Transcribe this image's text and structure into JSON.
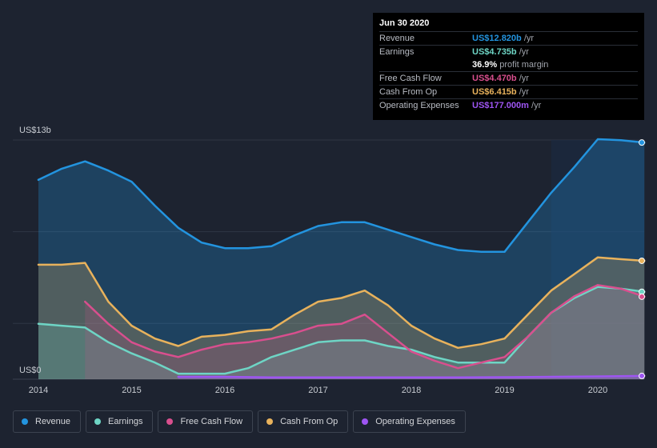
{
  "tooltip": {
    "date": "Jun 30 2020",
    "rows": [
      {
        "label": "Revenue",
        "value": "US$12.820b",
        "unit": "/yr",
        "color": "#2394df"
      },
      {
        "label": "Earnings",
        "value": "US$4.735b",
        "unit": "/yr",
        "color": "#6ed5c5"
      },
      {
        "label": "",
        "value": "36.9%",
        "unit": "profit margin",
        "color": "#ffffff"
      },
      {
        "label": "Free Cash Flow",
        "value": "US$4.470b",
        "unit": "/yr",
        "color": "#d94f8e"
      },
      {
        "label": "Cash From Op",
        "value": "US$6.415b",
        "unit": "/yr",
        "color": "#e8b25c"
      },
      {
        "label": "Operating Expenses",
        "value": "US$177.000m",
        "unit": "/yr",
        "color": "#9e55f2"
      }
    ]
  },
  "legend": [
    {
      "label": "Revenue",
      "color": "#2394df"
    },
    {
      "label": "Earnings",
      "color": "#6ed5c5"
    },
    {
      "label": "Free Cash Flow",
      "color": "#d94f8e"
    },
    {
      "label": "Cash From Op",
      "color": "#e8b25c"
    },
    {
      "label": "Operating Expenses",
      "color": "#9e55f2"
    }
  ],
  "chart_data": {
    "type": "area",
    "title": "",
    "y_unit_label_top": "US$13b",
    "y_unit_label_bottom": "US$0",
    "ylim": [
      0,
      13
    ],
    "xlim": [
      2014,
      2020.5
    ],
    "x_ticks": [
      "2014",
      "2015",
      "2016",
      "2017",
      "2018",
      "2019",
      "2020"
    ],
    "highlight_from": 2019.5,
    "series": [
      {
        "name": "Revenue",
        "color": "#2394df",
        "x": [
          2014.0,
          2014.25,
          2014.5,
          2014.75,
          2015.0,
          2015.25,
          2015.5,
          2015.75,
          2016.0,
          2016.25,
          2016.5,
          2016.75,
          2017.0,
          2017.25,
          2017.5,
          2017.75,
          2018.0,
          2018.25,
          2018.5,
          2018.75,
          2019.0,
          2019.25,
          2019.5,
          2019.75,
          2020.0,
          2020.25,
          2020.5
        ],
        "values": [
          10.8,
          11.4,
          11.8,
          11.3,
          10.7,
          9.4,
          8.2,
          7.4,
          7.1,
          7.1,
          7.2,
          7.8,
          8.3,
          8.5,
          8.5,
          8.1,
          7.7,
          7.3,
          7.0,
          6.9,
          6.9,
          8.5,
          10.1,
          11.5,
          13.0,
          12.95,
          12.82
        ]
      },
      {
        "name": "Cash From Op",
        "color": "#e8b25c",
        "x": [
          2014.0,
          2014.25,
          2014.5,
          2014.75,
          2015.0,
          2015.25,
          2015.5,
          2015.75,
          2016.0,
          2016.25,
          2016.5,
          2016.75,
          2017.0,
          2017.25,
          2017.5,
          2017.75,
          2018.0,
          2018.25,
          2018.5,
          2018.75,
          2019.0,
          2019.25,
          2019.5,
          2019.75,
          2020.0,
          2020.25,
          2020.5
        ],
        "values": [
          6.2,
          6.2,
          6.3,
          4.2,
          2.9,
          2.2,
          1.8,
          2.3,
          2.4,
          2.6,
          2.7,
          3.5,
          4.2,
          4.4,
          4.8,
          4.0,
          2.9,
          2.2,
          1.7,
          1.9,
          2.2,
          3.5,
          4.8,
          5.7,
          6.6,
          6.5,
          6.415
        ]
      },
      {
        "name": "Earnings",
        "color": "#6ed5c5",
        "x": [
          2014.0,
          2014.25,
          2014.5,
          2014.75,
          2015.0,
          2015.25,
          2015.5,
          2015.75,
          2016.0,
          2016.25,
          2016.5,
          2016.75,
          2017.0,
          2017.25,
          2017.5,
          2017.75,
          2018.0,
          2018.25,
          2018.5,
          2018.75,
          2019.0,
          2019.25,
          2019.5,
          2019.75,
          2020.0,
          2020.25,
          2020.5
        ],
        "values": [
          3.0,
          2.9,
          2.8,
          2.0,
          1.4,
          0.9,
          0.3,
          0.3,
          0.3,
          0.6,
          1.2,
          1.6,
          2.0,
          2.1,
          2.1,
          1.8,
          1.6,
          1.2,
          0.9,
          0.9,
          0.9,
          2.3,
          3.6,
          4.4,
          5.0,
          4.9,
          4.735
        ]
      },
      {
        "name": "Free Cash Flow",
        "color": "#d94f8e",
        "x": [
          2014.5,
          2014.75,
          2015.0,
          2015.25,
          2015.5,
          2015.75,
          2016.0,
          2016.25,
          2016.5,
          2016.75,
          2017.0,
          2017.25,
          2017.5,
          2017.75,
          2018.0,
          2018.25,
          2018.5,
          2018.75,
          2019.0,
          2019.25,
          2019.5,
          2019.75,
          2020.0,
          2020.25,
          2020.5
        ],
        "values": [
          4.2,
          3.0,
          2.0,
          1.5,
          1.2,
          1.6,
          1.9,
          2.0,
          2.2,
          2.5,
          2.9,
          3.0,
          3.5,
          2.5,
          1.5,
          1.0,
          0.6,
          0.9,
          1.2,
          2.3,
          3.6,
          4.5,
          5.1,
          4.9,
          4.47
        ]
      },
      {
        "name": "Operating Expenses",
        "color": "#9e55f2",
        "x": [
          2015.5,
          2016.0,
          2016.5,
          2017.0,
          2017.5,
          2018.0,
          2018.5,
          2019.0,
          2019.5,
          2020.0,
          2020.5
        ],
        "values": [
          0.13,
          0.13,
          0.1,
          0.1,
          0.1,
          0.1,
          0.1,
          0.11,
          0.13,
          0.15,
          0.177
        ]
      }
    ]
  }
}
